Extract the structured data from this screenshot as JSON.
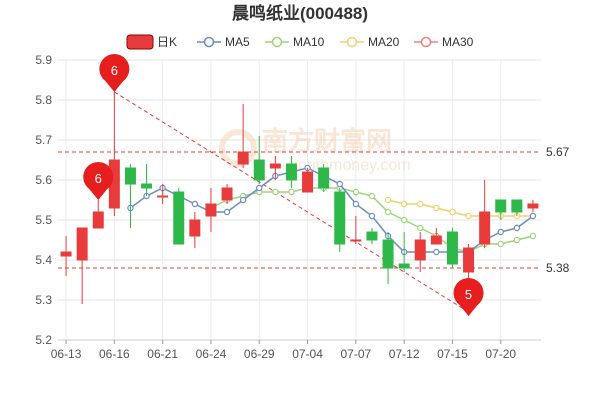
{
  "chart_data": {
    "type": "candlestick",
    "title": "晨鸣纸业(000488)",
    "ylim": [
      5.2,
      5.9
    ],
    "yticks": [
      "5.2",
      "5.3",
      "5.4",
      "5.5",
      "5.6",
      "5.7",
      "5.8",
      "5.9"
    ],
    "xticks": [
      {
        "i": 0,
        "label": "06-13"
      },
      {
        "i": 3,
        "label": "06-16"
      },
      {
        "i": 6,
        "label": "06-21"
      },
      {
        "i": 9,
        "label": "06-24"
      },
      {
        "i": 12,
        "label": "06-29"
      },
      {
        "i": 15,
        "label": "07-04"
      },
      {
        "i": 18,
        "label": "07-07"
      },
      {
        "i": 21,
        "label": "07-12"
      },
      {
        "i": 24,
        "label": "07-15"
      },
      {
        "i": 27,
        "label": "07-20"
      }
    ],
    "grid": true,
    "legend": [
      {
        "name": "日K",
        "color": "#e83b3b",
        "kind": "candle"
      },
      {
        "name": "MA5",
        "color": "#6b8cc7",
        "kind": "line"
      },
      {
        "name": "MA10",
        "color": "#9fd47a",
        "kind": "line"
      },
      {
        "name": "MA20",
        "color": "#f5cf6b",
        "kind": "line"
      },
      {
        "name": "MA30",
        "color": "#f08080",
        "kind": "line"
      }
    ],
    "colors": {
      "up": "#e83b3b",
      "down": "#2eb84a"
    },
    "candles": [
      {
        "o": 5.41,
        "c": 5.42,
        "h": 5.46,
        "l": 5.36
      },
      {
        "o": 5.4,
        "c": 5.48,
        "h": 5.48,
        "l": 5.29
      },
      {
        "o": 5.48,
        "c": 5.52,
        "h": 5.55,
        "l": 5.48
      },
      {
        "o": 5.53,
        "c": 5.65,
        "h": 5.82,
        "l": 5.51
      },
      {
        "o": 5.63,
        "c": 5.59,
        "h": 5.64,
        "l": 5.48
      },
      {
        "o": 5.59,
        "c": 5.58,
        "h": 5.64,
        "l": 5.56
      },
      {
        "o": 5.56,
        "c": 5.56,
        "h": 5.59,
        "l": 5.54
      },
      {
        "o": 5.57,
        "c": 5.44,
        "h": 5.58,
        "l": 5.44
      },
      {
        "o": 5.46,
        "c": 5.5,
        "h": 5.52,
        "l": 5.43
      },
      {
        "o": 5.51,
        "c": 5.54,
        "h": 5.58,
        "l": 5.47
      },
      {
        "o": 5.55,
        "c": 5.58,
        "h": 5.59,
        "l": 5.54
      },
      {
        "o": 5.64,
        "c": 5.67,
        "h": 5.79,
        "l": 5.63
      },
      {
        "o": 5.65,
        "c": 5.6,
        "h": 5.71,
        "l": 5.59
      },
      {
        "o": 5.63,
        "c": 5.64,
        "h": 5.66,
        "l": 5.6
      },
      {
        "o": 5.64,
        "c": 5.6,
        "h": 5.66,
        "l": 5.58
      },
      {
        "o": 5.57,
        "c": 5.62,
        "h": 5.63,
        "l": 5.57
      },
      {
        "o": 5.63,
        "c": 5.58,
        "h": 5.64,
        "l": 5.57
      },
      {
        "o": 5.57,
        "c": 5.44,
        "h": 5.58,
        "l": 5.42
      },
      {
        "o": 5.45,
        "c": 5.45,
        "h": 5.51,
        "l": 5.44
      },
      {
        "o": 5.47,
        "c": 5.45,
        "h": 5.48,
        "l": 5.44
      },
      {
        "o": 5.45,
        "c": 5.38,
        "h": 5.47,
        "l": 5.34
      },
      {
        "o": 5.39,
        "c": 5.38,
        "h": 5.47,
        "l": 5.37
      },
      {
        "o": 5.4,
        "c": 5.45,
        "h": 5.47,
        "l": 5.37
      },
      {
        "o": 5.44,
        "c": 5.46,
        "h": 5.48,
        "l": 5.44
      },
      {
        "o": 5.47,
        "c": 5.39,
        "h": 5.48,
        "l": 5.38
      },
      {
        "o": 5.37,
        "c": 5.43,
        "h": 5.44,
        "l": 5.26
      },
      {
        "o": 5.44,
        "c": 5.52,
        "h": 5.6,
        "l": 5.43
      },
      {
        "o": 5.55,
        "c": 5.52,
        "h": 5.55,
        "l": 5.5
      },
      {
        "o": 5.55,
        "c": 5.52,
        "h": 5.55,
        "l": 5.51
      },
      {
        "o": 5.53,
        "c": 5.54,
        "h": 5.55,
        "l": 5.52
      }
    ],
    "ma5": [
      null,
      null,
      null,
      null,
      5.53,
      5.56,
      5.58,
      5.56,
      5.54,
      5.52,
      5.52,
      5.55,
      5.58,
      5.61,
      5.62,
      5.63,
      5.61,
      5.59,
      5.54,
      5.51,
      5.46,
      5.42,
      5.42,
      5.42,
      5.42,
      5.42,
      5.45,
      5.47,
      5.48,
      5.51
    ],
    "ma10": [
      null,
      null,
      null,
      null,
      null,
      null,
      null,
      null,
      null,
      5.53,
      5.55,
      5.56,
      5.57,
      5.57,
      5.57,
      5.58,
      5.58,
      5.58,
      5.57,
      5.56,
      5.52,
      5.5,
      5.48,
      5.46,
      5.43,
      5.42,
      5.44,
      5.44,
      5.45,
      5.46
    ],
    "ma20": [
      null,
      null,
      null,
      null,
      null,
      null,
      null,
      null,
      null,
      null,
      null,
      null,
      null,
      null,
      null,
      null,
      null,
      null,
      null,
      null,
      5.55,
      5.54,
      5.54,
      5.53,
      5.52,
      5.51,
      5.51,
      5.51,
      5.51,
      5.51
    ],
    "ma30": [],
    "ref_lines": [
      {
        "value": 5.67,
        "label": "5.67"
      },
      {
        "value": 5.38,
        "label": "5.38"
      }
    ],
    "trend_line": {
      "from": {
        "i": 3,
        "v": 5.82
      },
      "to": {
        "i": 25,
        "v": 5.27
      }
    },
    "annotations": [
      {
        "i": 3,
        "v": 5.82,
        "text": "6"
      },
      {
        "i": 2,
        "v": 5.55,
        "text": "6"
      },
      {
        "i": 25,
        "v": 5.26,
        "text": "5"
      }
    ],
    "watermark": {
      "line1": "南方财富网",
      "line2": "southmoney.com"
    }
  }
}
